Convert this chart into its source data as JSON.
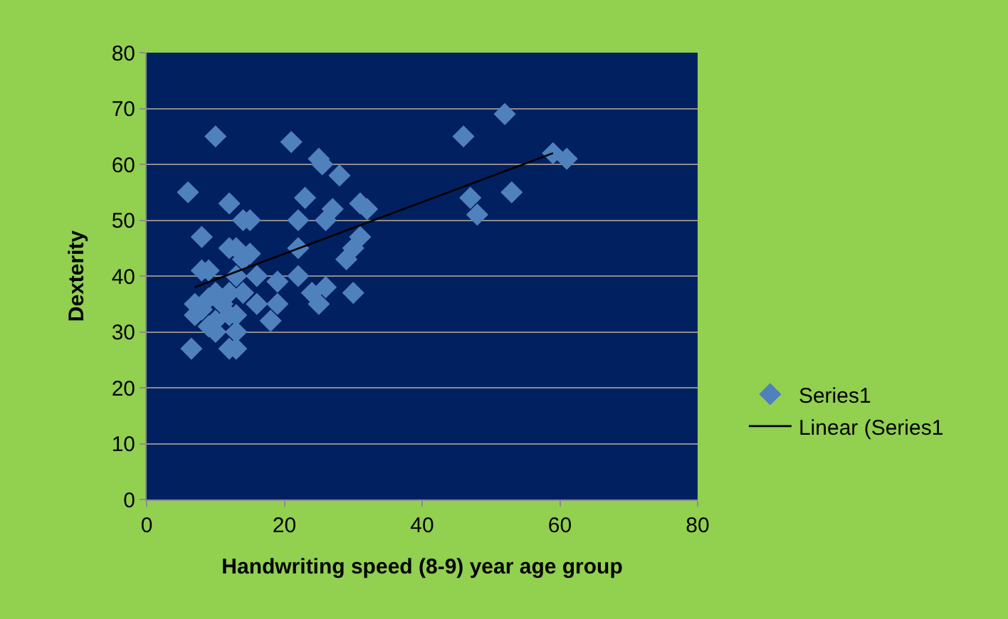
{
  "chart_data": {
    "type": "scatter",
    "xlabel": "Handwriting speed (8-9) year age group",
    "ylabel": "Dexterity",
    "xlim": [
      0,
      80
    ],
    "xticks": [
      0,
      20,
      40,
      60,
      80
    ],
    "ylim": [
      0,
      80
    ],
    "yticks": [
      0,
      10,
      20,
      30,
      40,
      50,
      60,
      70,
      80
    ],
    "grid": "y",
    "legend": "right",
    "series": [
      {
        "name": "Series1",
        "marker": "diamond",
        "color": "#4f81bd",
        "x": [
          6,
          10,
          21,
          8,
          12,
          14,
          13,
          15,
          22,
          23,
          25,
          25.5,
          28,
          31,
          32,
          27,
          26,
          22,
          9,
          8,
          10,
          12,
          12,
          14,
          15,
          16,
          13,
          7,
          7,
          8,
          9,
          10,
          11,
          12,
          13,
          14,
          9,
          10,
          12,
          13,
          6.5,
          13,
          16,
          19,
          19,
          18,
          22,
          24,
          25,
          26,
          29,
          30,
          31,
          30,
          46,
          52,
          47,
          48,
          53,
          59,
          61
        ],
        "values": [
          55,
          65,
          64,
          47,
          53,
          50,
          45,
          50,
          50,
          54,
          61,
          60,
          58,
          53,
          52,
          52,
          50,
          45,
          41,
          41,
          37,
          37,
          45,
          43,
          44,
          40,
          40,
          35,
          33,
          34,
          36,
          32,
          35,
          33,
          33,
          37,
          31,
          30,
          27,
          27,
          27,
          30,
          35,
          39,
          35,
          32,
          40,
          37,
          35,
          38,
          43,
          45,
          47,
          37,
          65,
          69,
          54,
          51,
          55,
          62,
          61
        ]
      },
      {
        "name": "Linear (Series1",
        "type": "line",
        "marker": "none",
        "color": "#000000",
        "x": [
          7,
          59
        ],
        "values": [
          38,
          62
        ]
      }
    ]
  }
}
